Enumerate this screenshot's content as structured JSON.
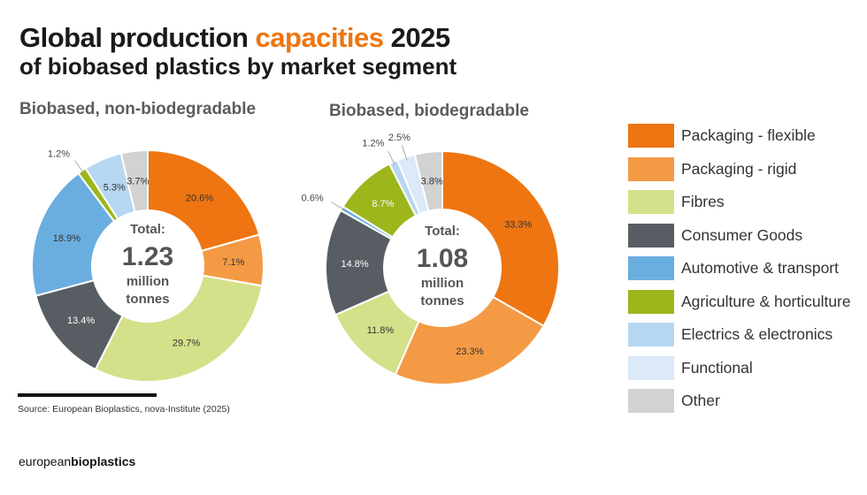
{
  "title": {
    "line1_pre": "Global production ",
    "line1_highlight": "capacities",
    "line1_post": " 2025",
    "line2_bold": "of biobased plastics",
    "line2_rest": " by market segment"
  },
  "colors": {
    "accent": "#ee7511",
    "segments": {
      "Packaging - flexible": "#ee7511",
      "Packaging - rigid": "#f49a45",
      "Fibres": "#d5e08a",
      "Consumer Goods": "#575d62",
      "Automotive & transport": "#6aaee0",
      "Agriculture & horticulture": "#9cb61c",
      "Electrics & electronics": "#b7d7f1",
      "Functional": "#dbe9f8",
      "Other": "#d2d2d2"
    }
  },
  "legend": [
    "Packaging - flexible",
    "Packaging - rigid",
    "Fibres",
    "Consumer Goods",
    "Automotive & transport",
    "Agriculture & horticulture",
    "Electrics & electronics",
    "Functional",
    "Other"
  ],
  "chart_data": [
    {
      "type": "pie",
      "title": "Biobased, non-biodegradable",
      "center_label": {
        "line1": "Total:",
        "value": "1.23",
        "line3": "million",
        "line4": "tonnes"
      },
      "categories": [
        "Packaging - flexible",
        "Packaging - rigid",
        "Fibres",
        "Consumer Goods",
        "Automotive & transport",
        "Agriculture & horticulture",
        "Electrics & electronics",
        "Other"
      ],
      "values": [
        20.6,
        7.1,
        29.7,
        13.4,
        18.9,
        1.2,
        5.3,
        3.7
      ],
      "labels": [
        "20.6%",
        "7.1%",
        "29.7%",
        "13.4%",
        "18.9%",
        "1.2%",
        "5.3%",
        "3.7%"
      ],
      "unit": "%"
    },
    {
      "type": "pie",
      "title": "Biobased, biodegradable",
      "center_label": {
        "line1": "Total:",
        "value": "1.08",
        "line3": "million",
        "line4": "tonnes"
      },
      "categories": [
        "Packaging - flexible",
        "Packaging - rigid",
        "Fibres",
        "Consumer Goods",
        "Automotive & transport",
        "Agriculture & horticulture",
        "Electrics & electronics",
        "Functional",
        "Other"
      ],
      "values": [
        33.3,
        23.3,
        11.8,
        14.8,
        0.6,
        8.7,
        1.2,
        2.5,
        3.8
      ],
      "labels": [
        "33.3%",
        "23.3%",
        "11.8%",
        "14.8%",
        "0.6%",
        "8.7%",
        "1.2%",
        "2.5%",
        "3.8%"
      ],
      "unit": "%"
    }
  ],
  "source": "Source: European Bioplastics, nova-Institute (2025)",
  "brand": {
    "regular": "european",
    "bold": "bioplastics"
  }
}
